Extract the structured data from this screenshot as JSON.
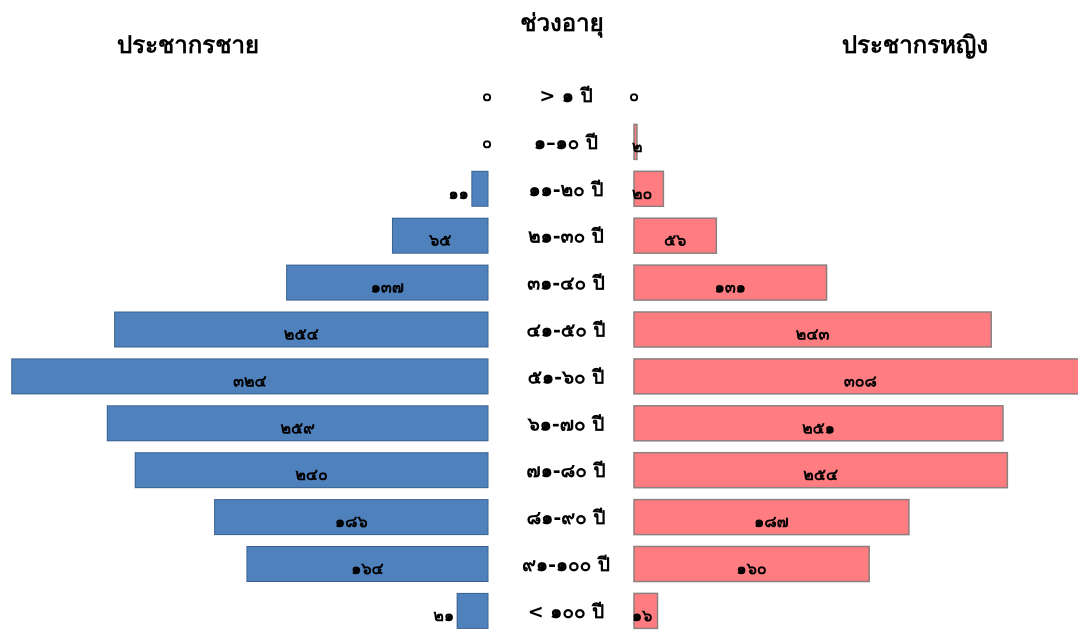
{
  "chart_data": {
    "type": "bar",
    "headers": {
      "male": "ประชากรชาย",
      "age": "ช่วงอายุ",
      "female": "ประชากรหญิง"
    },
    "categories": [
      "> ๑ ปี",
      "๑–๑๐ ปี",
      "๑๑-๒๐ ปี",
      "๒๑-๓๐ ปี",
      "๓๑-๔๐ ปี",
      "๔๑-๕๐ ปี",
      "๕๑-๖๐ ปี",
      "๖๑-๗๐ ปี",
      "๗๑-๘๐ ปี",
      "๘๑-๙๐ ปี",
      "๙๑-๑๐๐ ปี",
      "< ๑๐๐ ปี"
    ],
    "series": [
      {
        "name": "ประชากรชาย",
        "values": [
          0,
          0,
          11,
          65,
          137,
          254,
          324,
          259,
          240,
          186,
          164,
          21
        ],
        "labels": [
          "๐",
          "๐",
          "๑๑",
          "๖๕",
          "๑๓๗",
          "๒๕๔",
          "๓๒๔",
          "๒๕๙",
          "๒๔๐",
          "๑๘๖",
          "๑๖๔",
          "๒๑"
        ],
        "color": "#4F81BD"
      },
      {
        "name": "ประชากรหญิง",
        "values": [
          0,
          2,
          20,
          56,
          131,
          243,
          308,
          251,
          254,
          187,
          160,
          16
        ],
        "labels": [
          "๐",
          "๒",
          "๒๐",
          "๕๖",
          "๑๓๑",
          "๒๔๓",
          "๓๐๘",
          "๒๕๑",
          "๒๕๔",
          "๑๘๗",
          "๑๖๐",
          "๑๖"
        ],
        "color": "#FF7C80"
      }
    ],
    "grid": false,
    "legend": "none"
  }
}
